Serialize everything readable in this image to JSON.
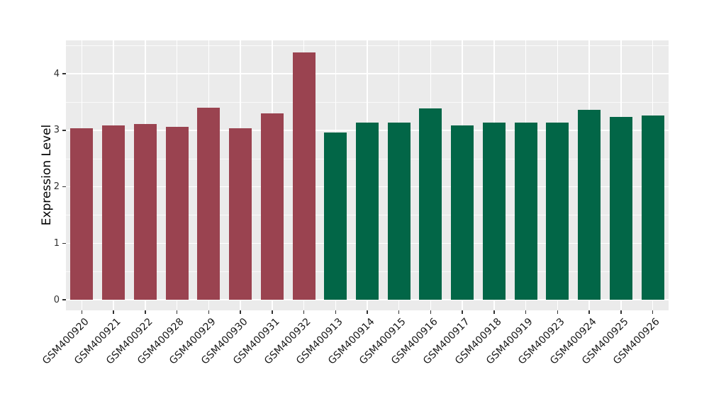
{
  "figure": {
    "background_color": "#FFFFFF",
    "panel_background_color": "#EBEBEB",
    "gridline_color": "#FFFFFF",
    "tick_color": "#333333",
    "axis_text_color": "#303030"
  },
  "chart_data": {
    "type": "bar",
    "title": "",
    "xlabel": "",
    "ylabel": "Expression Level",
    "ylim": [
      0,
      4.6
    ],
    "yticks": [
      0,
      1,
      2,
      3,
      4
    ],
    "y_minor_ticks": [
      0.5,
      1.5,
      2.5,
      3.5,
      4.5
    ],
    "grid": "white major and minor horizontal gridlines, white vertical gridline per category, on gray panel",
    "legend_position": "none",
    "bar_colors": {
      "group1": "#9A4350",
      "group2": "#026647"
    },
    "categories": [
      "GSM400920",
      "GSM400921",
      "GSM400922",
      "GSM400928",
      "GSM400929",
      "GSM400930",
      "GSM400931",
      "GSM400932",
      "GSM400913",
      "GSM400914",
      "GSM400915",
      "GSM400916",
      "GSM400917",
      "GSM400918",
      "GSM400919",
      "GSM400923",
      "GSM400924",
      "GSM400925",
      "GSM400926"
    ],
    "bars": [
      {
        "label": "GSM400920",
        "value": 3.03,
        "group": "group1"
      },
      {
        "label": "GSM400921",
        "value": 3.08,
        "group": "group1"
      },
      {
        "label": "GSM400922",
        "value": 3.11,
        "group": "group1"
      },
      {
        "label": "GSM400928",
        "value": 3.06,
        "group": "group1"
      },
      {
        "label": "GSM400929",
        "value": 3.4,
        "group": "group1"
      },
      {
        "label": "GSM400930",
        "value": 3.03,
        "group": "group1"
      },
      {
        "label": "GSM400931",
        "value": 3.3,
        "group": "group1"
      },
      {
        "label": "GSM400932",
        "value": 4.38,
        "group": "group1"
      },
      {
        "label": "GSM400913",
        "value": 2.96,
        "group": "group2"
      },
      {
        "label": "GSM400914",
        "value": 3.13,
        "group": "group2"
      },
      {
        "label": "GSM400915",
        "value": 3.14,
        "group": "group2"
      },
      {
        "label": "GSM400916",
        "value": 3.38,
        "group": "group2"
      },
      {
        "label": "GSM400917",
        "value": 3.09,
        "group": "group2"
      },
      {
        "label": "GSM400918",
        "value": 3.14,
        "group": "group2"
      },
      {
        "label": "GSM400919",
        "value": 3.14,
        "group": "group2"
      },
      {
        "label": "GSM400923",
        "value": 3.14,
        "group": "group2"
      },
      {
        "label": "GSM400924",
        "value": 3.36,
        "group": "group2"
      },
      {
        "label": "GSM400925",
        "value": 3.23,
        "group": "group2"
      },
      {
        "label": "GSM400926",
        "value": 3.26,
        "group": "group2"
      }
    ]
  }
}
